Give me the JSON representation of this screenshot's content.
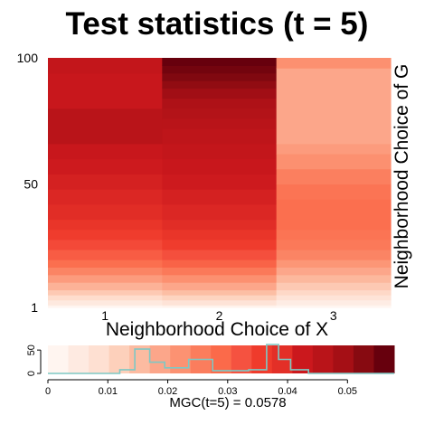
{
  "chart_data": [
    {
      "type": "heatmap",
      "title": "Test statistics (t = 5)",
      "xlabel": "Neighborhood Choice of X",
      "ylabel": "Neighborhood Choice of G",
      "x_ticks": [
        "1",
        "2",
        "3"
      ],
      "y_ticks": [
        "1",
        "50",
        "100"
      ],
      "ylim": [
        1,
        100
      ],
      "colormap": "Reds",
      "columns": [
        {
          "x": 1,
          "cells": [
            {
              "y0": 1,
              "y1": 2,
              "value": 0.0
            },
            {
              "y0": 2,
              "y1": 4,
              "value": 0.004
            },
            {
              "y0": 4,
              "y1": 6,
              "value": 0.008
            },
            {
              "y0": 6,
              "y1": 8,
              "value": 0.012
            },
            {
              "y0": 8,
              "y1": 11,
              "value": 0.016
            },
            {
              "y0": 11,
              "y1": 14,
              "value": 0.02
            },
            {
              "y0": 14,
              "y1": 17,
              "value": 0.024
            },
            {
              "y0": 17,
              "y1": 20,
              "value": 0.028
            },
            {
              "y0": 20,
              "y1": 24,
              "value": 0.031
            },
            {
              "y0": 24,
              "y1": 28,
              "value": 0.034
            },
            {
              "y0": 28,
              "y1": 32,
              "value": 0.036
            },
            {
              "y0": 32,
              "y1": 36,
              "value": 0.038
            },
            {
              "y0": 36,
              "y1": 42,
              "value": 0.04
            },
            {
              "y0": 42,
              "y1": 48,
              "value": 0.041
            },
            {
              "y0": 48,
              "y1": 54,
              "value": 0.042
            },
            {
              "y0": 54,
              "y1": 60,
              "value": 0.043
            },
            {
              "y0": 60,
              "y1": 66,
              "value": 0.044
            },
            {
              "y0": 66,
              "y1": 80,
              "value": 0.047
            },
            {
              "y0": 80,
              "y1": 94,
              "value": 0.044
            },
            {
              "y0": 94,
              "y1": 100,
              "value": 0.045
            }
          ]
        },
        {
          "x": 2,
          "cells": [
            {
              "y0": 1,
              "y1": 2,
              "value": 0.001
            },
            {
              "y0": 2,
              "y1": 4,
              "value": 0.006
            },
            {
              "y0": 4,
              "y1": 6,
              "value": 0.01
            },
            {
              "y0": 6,
              "y1": 8,
              "value": 0.014
            },
            {
              "y0": 8,
              "y1": 11,
              "value": 0.018
            },
            {
              "y0": 11,
              "y1": 14,
              "value": 0.022
            },
            {
              "y0": 14,
              "y1": 17,
              "value": 0.026
            },
            {
              "y0": 17,
              "y1": 20,
              "value": 0.03
            },
            {
              "y0": 20,
              "y1": 24,
              "value": 0.033
            },
            {
              "y0": 24,
              "y1": 28,
              "value": 0.036
            },
            {
              "y0": 28,
              "y1": 32,
              "value": 0.038
            },
            {
              "y0": 32,
              "y1": 36,
              "value": 0.04
            },
            {
              "y0": 36,
              "y1": 42,
              "value": 0.041
            },
            {
              "y0": 42,
              "y1": 48,
              "value": 0.042
            },
            {
              "y0": 48,
              "y1": 54,
              "value": 0.043
            },
            {
              "y0": 54,
              "y1": 60,
              "value": 0.044
            },
            {
              "y0": 60,
              "y1": 66,
              "value": 0.045
            },
            {
              "y0": 66,
              "y1": 72,
              "value": 0.046
            },
            {
              "y0": 72,
              "y1": 76,
              "value": 0.047
            },
            {
              "y0": 76,
              "y1": 80,
              "value": 0.048
            },
            {
              "y0": 80,
              "y1": 84,
              "value": 0.049
            },
            {
              "y0": 84,
              "y1": 88,
              "value": 0.051
            },
            {
              "y0": 88,
              "y1": 91,
              "value": 0.053
            },
            {
              "y0": 91,
              "y1": 94,
              "value": 0.055
            },
            {
              "y0": 94,
              "y1": 97,
              "value": 0.0565
            },
            {
              "y0": 97,
              "y1": 100,
              "value": 0.0578
            }
          ]
        },
        {
          "x": 3,
          "cells": [
            {
              "y0": 1,
              "y1": 2,
              "value": 0.0
            },
            {
              "y0": 2,
              "y1": 4,
              "value": 0.003
            },
            {
              "y0": 4,
              "y1": 6,
              "value": 0.006
            },
            {
              "y0": 6,
              "y1": 8,
              "value": 0.009
            },
            {
              "y0": 8,
              "y1": 11,
              "value": 0.012
            },
            {
              "y0": 11,
              "y1": 14,
              "value": 0.015
            },
            {
              "y0": 14,
              "y1": 17,
              "value": 0.018
            },
            {
              "y0": 17,
              "y1": 20,
              "value": 0.021
            },
            {
              "y0": 20,
              "y1": 24,
              "value": 0.024
            },
            {
              "y0": 24,
              "y1": 28,
              "value": 0.026
            },
            {
              "y0": 28,
              "y1": 32,
              "value": 0.027
            },
            {
              "y0": 32,
              "y1": 44,
              "value": 0.028
            },
            {
              "y0": 44,
              "y1": 50,
              "value": 0.027
            },
            {
              "y0": 50,
              "y1": 56,
              "value": 0.025
            },
            {
              "y0": 56,
              "y1": 62,
              "value": 0.022
            },
            {
              "y0": 62,
              "y1": 66,
              "value": 0.02
            },
            {
              "y0": 66,
              "y1": 96,
              "value": 0.018
            },
            {
              "y0": 96,
              "y1": 100,
              "value": 0.022
            }
          ]
        }
      ]
    },
    {
      "type": "histogram",
      "caption": "MGC(t=5) = 0.0578",
      "xlim": [
        0,
        0.0578
      ],
      "ylim": [
        0,
        60
      ],
      "x_ticks": [
        "0",
        "0.01",
        "0.02",
        "0.03",
        "0.04",
        "0.05"
      ],
      "x_tick_values": [
        0,
        0.01,
        0.02,
        0.03,
        0.04,
        0.05
      ],
      "y_ticks": [
        "0",
        "50"
      ],
      "y_tick_values": [
        0,
        50
      ],
      "colorbar_colors": [
        "#fff5f0",
        "#feeae1",
        "#fee0d2",
        "#fdd0bb",
        "#fcbba1",
        "#fca68a",
        "#fc9272",
        "#fb7d5d",
        "#fb6a4a",
        "#f55240",
        "#ef3b2c",
        "#e32f27",
        "#cb181d",
        "#b91419",
        "#a50f15",
        "#870a11",
        "#67000d"
      ],
      "line_color": "#7ec8c4",
      "bins": [
        0,
        0.004,
        0.008,
        0.012,
        0.0145,
        0.017,
        0.0195,
        0.0235,
        0.0275,
        0.0335,
        0.0365,
        0.0385,
        0.0405,
        0.0435,
        0.0578
      ],
      "counts": [
        0,
        0,
        0,
        8,
        52,
        24,
        12,
        30,
        6,
        8,
        62,
        30,
        8,
        0
      ]
    }
  ]
}
